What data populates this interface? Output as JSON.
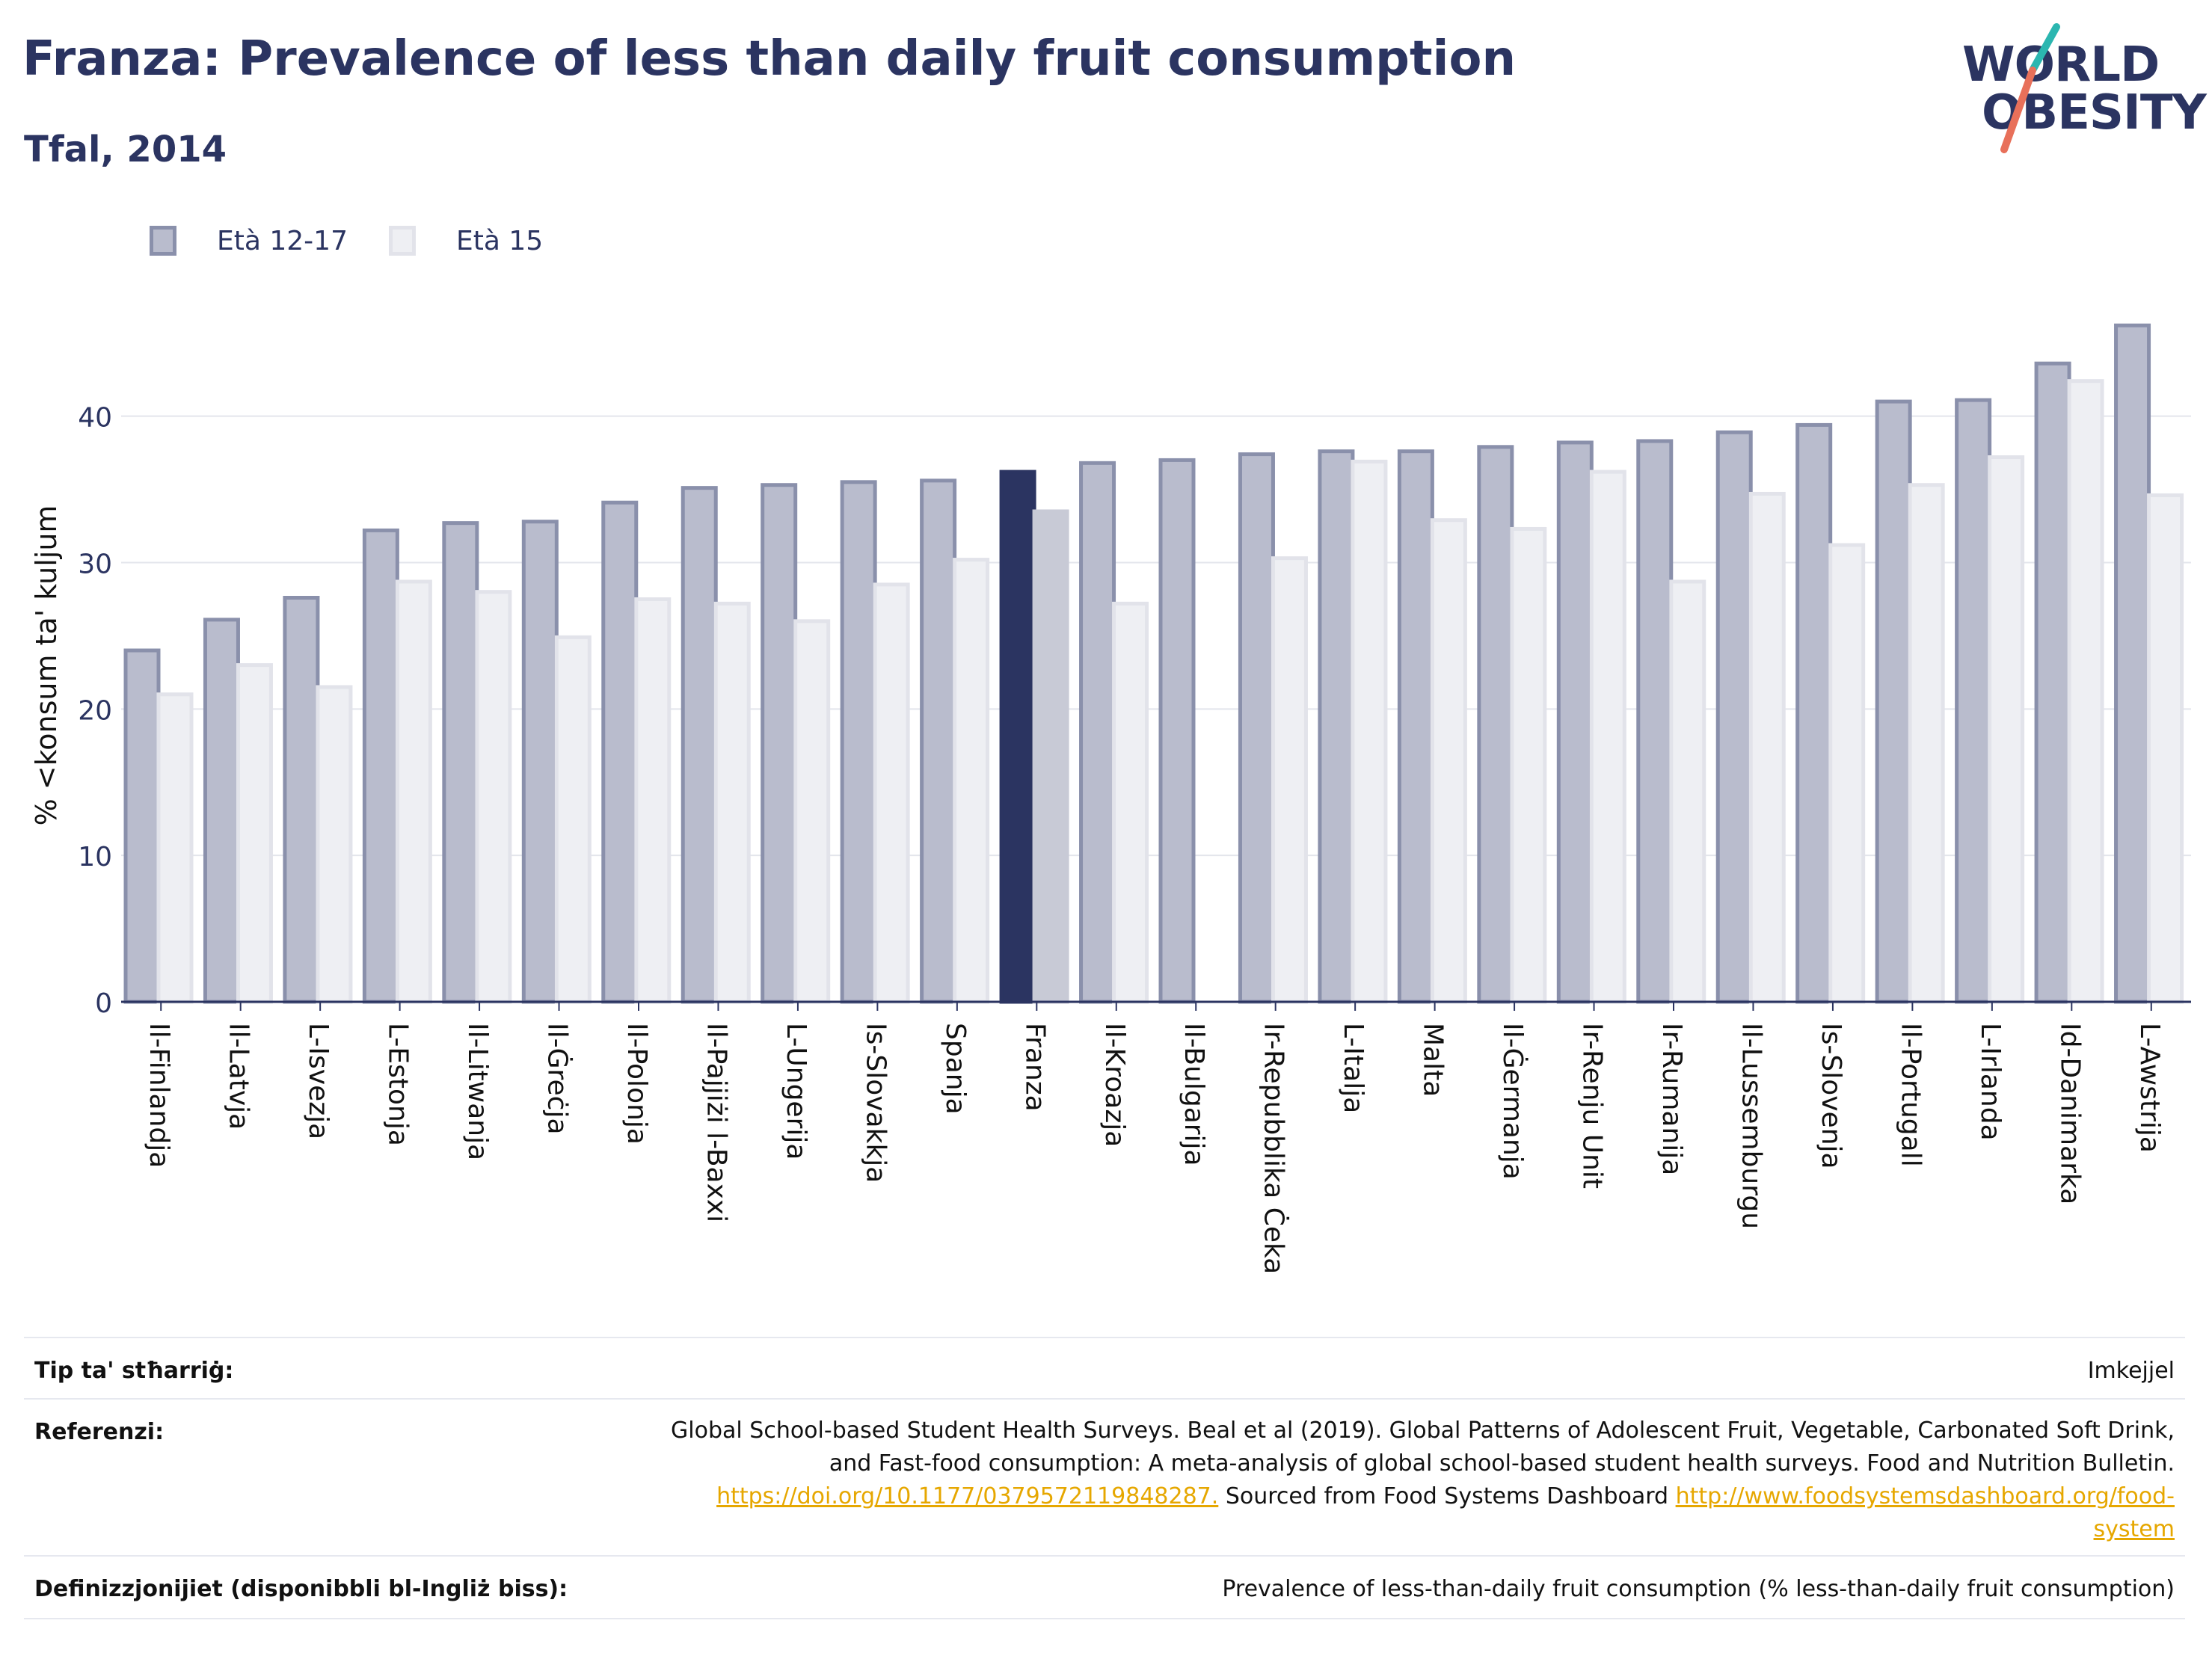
{
  "header": {
    "title": "Franza: Prevalence of less than daily fruit consumption",
    "subtitle": "Tfal, 2014",
    "logo_line1": "WORLD",
    "logo_line2": "OBESITY"
  },
  "colors": {
    "series1_fill": "#b9bccd",
    "series1_stroke": "#8a90ab",
    "series2_fill": "#eeeff3",
    "series2_stroke": "#e2e3ea",
    "highlight1": "#2b3461",
    "highlight2": "#c8cad6",
    "text": "#2b3461",
    "link": "#e6a700"
  },
  "chart_data": {
    "type": "bar",
    "ylabel": "% <konsum ta' kuljum",
    "ylim": [
      0,
      48
    ],
    "yticks": [
      0,
      10,
      20,
      30,
      40
    ],
    "grid": true,
    "legend_position": "top-left",
    "highlight_category": "Franza",
    "categories": [
      "Il-Finlandja",
      "Il-Latvja",
      "L-Isvezja",
      "L-Estonja",
      "Il-Litwanja",
      "Il-Ġreċja",
      "Il-Polonja",
      "Il-Pajjiżi l-Baxxi",
      "L-Ungerija",
      "Is-Slovakkja",
      "Spanja",
      "Franza",
      "Il-Kroazja",
      "Il-Bulgarija",
      "Ir-Repubblika Ċeka",
      "L-Italja",
      "Malta",
      "Il-Ġermanja",
      "Ir-Renju Unit",
      "Ir-Rumanija",
      "Il-Lussemburgu",
      "Is-Slovenja",
      "Il-Portugall",
      "L-Irlanda",
      "Id-Danimarka",
      "L-Awstrija"
    ],
    "series": [
      {
        "name": "Età 12-17",
        "values": [
          24.0,
          26.1,
          27.6,
          32.2,
          32.7,
          32.8,
          34.1,
          35.1,
          35.3,
          35.5,
          35.6,
          36.2,
          36.8,
          37.0,
          37.4,
          37.6,
          37.6,
          37.9,
          38.2,
          38.3,
          38.9,
          39.4,
          41.0,
          41.1,
          43.6,
          46.2
        ]
      },
      {
        "name": "Età 15",
        "values": [
          21.0,
          23.0,
          21.5,
          28.7,
          28.0,
          24.9,
          27.5,
          27.2,
          26.0,
          28.5,
          30.2,
          33.5,
          27.2,
          null,
          30.3,
          36.9,
          32.9,
          32.3,
          36.2,
          28.7,
          34.7,
          31.2,
          35.3,
          37.2,
          42.4,
          34.6
        ]
      }
    ]
  },
  "footer": {
    "rows": [
      {
        "label": "Tip ta' stħarriġ:",
        "lines": [
          "Imkejjel"
        ]
      },
      {
        "label": "Referenzi:",
        "lines": [
          "Global School-based Student Health Surveys. Beal et al (2019). Global Patterns of Adolescent Fruit, Vegetable, Carbonated Soft Drink,",
          "and Fast-food consumption: A meta-analysis of global school-based student health surveys. Food and Nutrition Bulletin."
        ],
        "link1": "https://doi.org/10.1177/0379572119848287.",
        "mid_text": " Sourced from Food Systems Dashboard ",
        "link2a": "http://www.foodsystemsdashboard.org/food-",
        "link2b": "system"
      },
      {
        "label": "Definizzjonijiet (disponibbli bl-Ingliż biss):",
        "lines": [
          "Prevalence of less-than-daily fruit consumption (% less-than-daily fruit consumption)"
        ]
      }
    ]
  }
}
